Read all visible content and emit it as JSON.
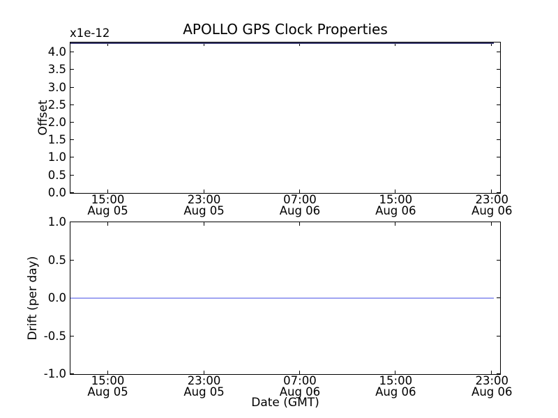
{
  "figure": {
    "title": "APOLLO GPS Clock Properties",
    "background_color": "#ffffff",
    "spine_color": "#000000",
    "text_color": "#000000"
  },
  "chart_data": [
    {
      "type": "line",
      "title": "APOLLO GPS Clock Properties",
      "ylabel": "Offset",
      "y_offset_text": "x1e-12",
      "xlabel": "",
      "x_tick_labels": [
        "15:00 Aug 05",
        "23:00 Aug 05",
        "07:00 Aug 06",
        "15:00 Aug 06",
        "23:00 Aug 06"
      ],
      "yticks": [
        0.0,
        0.5,
        1.0,
        1.5,
        2.0,
        2.5,
        3.0,
        3.5,
        4.0
      ],
      "ylim": [
        0.0,
        4.28
      ],
      "xlim": [
        "Aug 05 ~11:50",
        "Aug 06 ~23:40"
      ],
      "grid": false,
      "legend": null,
      "series": [
        {
          "name": "offset",
          "color": "#0000ff",
          "x": [
            "Aug 05 11:52",
            "Aug 06 23:05"
          ],
          "values": [
            4.28,
            4.28
          ],
          "appearance": "constant horizontal line at top of axis overlapping top spine (renders dark navy)"
        }
      ]
    },
    {
      "type": "line",
      "title": "",
      "ylabel": "Drift (per day)",
      "xlabel": "Date (GMT)",
      "x_tick_labels": [
        "15:00 Aug 05",
        "23:00 Aug 05",
        "07:00 Aug 06",
        "15:00 Aug 06",
        "23:00 Aug 06"
      ],
      "yticks": [
        -1.0,
        -0.5,
        0.0,
        0.5,
        1.0
      ],
      "ylim": [
        -1.0,
        1.0
      ],
      "xlim": [
        "Aug 05 ~11:50",
        "Aug 06 ~23:40"
      ],
      "grid": false,
      "legend": null,
      "series": [
        {
          "name": "drift",
          "color": "#0000ff",
          "x": [
            "Aug 05 11:52",
            "Aug 06 23:05"
          ],
          "values": [
            0.0,
            0.0
          ],
          "appearance": "constant horizontal light-blue line at y=0.0"
        }
      ]
    }
  ],
  "plots": [
    {
      "ylabel": "Offset",
      "offset_text": "x1e-12",
      "yticks": [
        {
          "label": "4.0",
          "pct": 6.5
        },
        {
          "label": "3.5",
          "pct": 18.2
        },
        {
          "label": "3.0",
          "pct": 29.9
        },
        {
          "label": "2.5",
          "pct": 41.6
        },
        {
          "label": "2.0",
          "pct": 53.3
        },
        {
          "label": "1.5",
          "pct": 65.0
        },
        {
          "label": "1.0",
          "pct": 76.6
        },
        {
          "label": "0.5",
          "pct": 88.3
        },
        {
          "label": "0.0",
          "pct": 100.0
        }
      ],
      "xticks": [
        {
          "time": "15:00",
          "date": "Aug 05",
          "pct": 8.7
        },
        {
          "time": "23:00",
          "date": "Aug 05",
          "pct": 31.1
        },
        {
          "time": "07:00",
          "date": "Aug 06",
          "pct": 53.4
        },
        {
          "time": "15:00",
          "date": "Aug 06",
          "pct": 75.7
        },
        {
          "time": "23:00",
          "date": "Aug 06",
          "pct": 98.1
        }
      ],
      "line": {
        "pct_y": 0.0,
        "width_pct": 98.5,
        "color": "#3b3b70",
        "thickness": 2
      }
    },
    {
      "ylabel": "Drift (per day)",
      "xlabel": "Date (GMT)",
      "yticks": [
        {
          "label": "1.0",
          "pct": 0.0
        },
        {
          "label": "0.5",
          "pct": 25.0
        },
        {
          "label": "0.0",
          "pct": 50.0
        },
        {
          "label": "-0.5",
          "pct": 75.0
        },
        {
          "label": "-1.0",
          "pct": 100.0
        }
      ],
      "xticks": [
        {
          "time": "15:00",
          "date": "Aug 05",
          "pct": 8.7
        },
        {
          "time": "23:00",
          "date": "Aug 05",
          "pct": 31.1
        },
        {
          "time": "07:00",
          "date": "Aug 06",
          "pct": 53.4
        },
        {
          "time": "15:00",
          "date": "Aug 06",
          "pct": 75.7
        },
        {
          "time": "23:00",
          "date": "Aug 06",
          "pct": 98.1
        }
      ],
      "line": {
        "pct_y": 50.0,
        "width_pct": 98.5,
        "color": "#a0a4f2",
        "thickness": 2
      }
    }
  ]
}
